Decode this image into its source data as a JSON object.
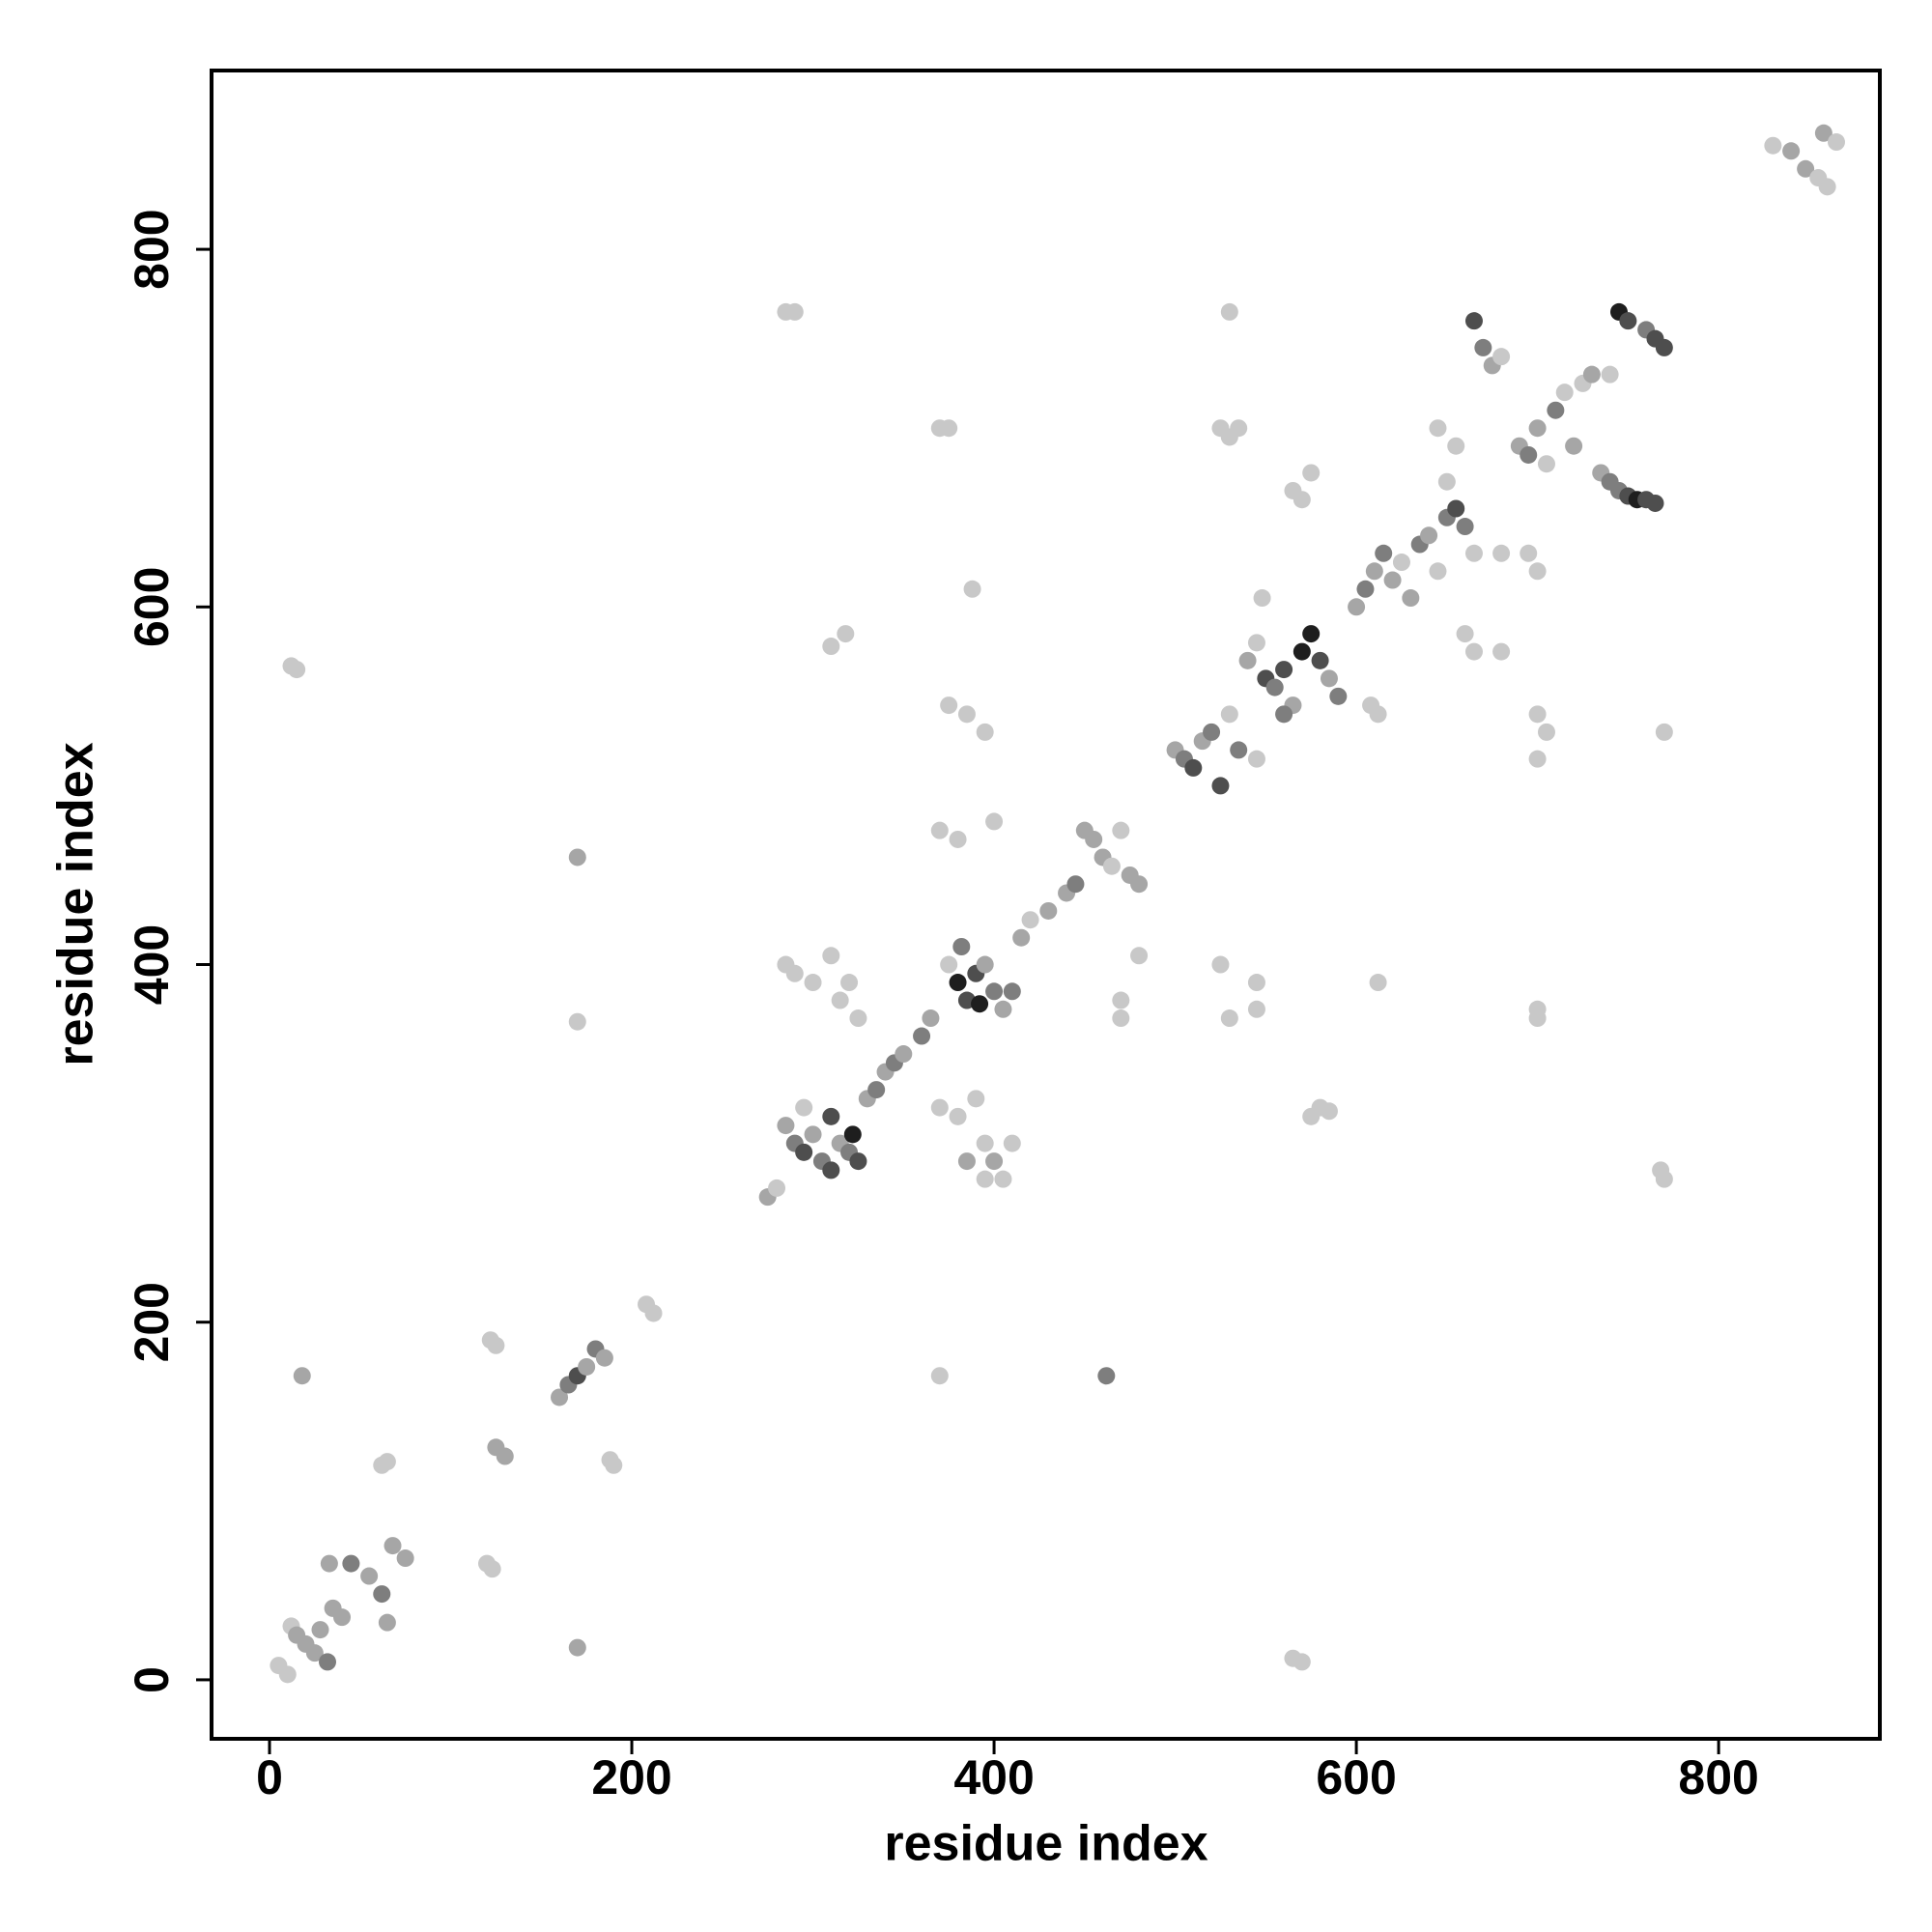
{
  "chart_data": {
    "type": "scatter",
    "x_label": "residue index",
    "y_label": "residue index",
    "xlim": [
      -32,
      889
    ],
    "ylim": [
      -33,
      900
    ],
    "xticks": [
      0,
      200,
      400,
      600,
      800
    ],
    "yticks": [
      0,
      200,
      400,
      600,
      800
    ],
    "grid": false,
    "x": [
      5,
      10,
      12,
      15,
      20,
      25,
      28,
      32,
      35,
      40,
      33,
      45,
      55,
      62,
      65,
      68,
      75,
      62,
      65,
      120,
      123,
      12,
      15,
      18,
      170,
      170,
      170,
      125,
      122,
      188,
      190,
      125,
      130,
      160,
      165,
      170,
      175,
      180,
      185,
      208,
      212,
      275,
      280,
      285,
      290,
      295,
      300,
      305,
      310,
      315,
      320,
      325,
      330,
      335,
      340,
      345,
      350,
      295,
      310,
      322,
      285,
      290,
      300,
      310,
      315,
      320,
      325,
      285,
      290,
      310,
      318,
      360,
      365,
      375,
      380,
      385,
      390,
      395,
      400,
      405,
      410,
      382,
      392,
      415,
      420,
      430,
      440,
      445,
      450,
      455,
      460,
      465,
      470,
      475,
      480,
      370,
      375,
      375,
      385,
      395,
      370,
      380,
      400,
      370,
      380,
      390,
      395,
      400,
      405,
      410,
      395,
      385,
      388,
      370,
      462,
      480,
      470,
      470,
      500,
      505,
      510,
      515,
      520,
      525,
      530,
      535,
      540,
      545,
      550,
      555,
      560,
      565,
      570,
      575,
      580,
      585,
      590,
      548,
      545,
      560,
      530,
      525,
      530,
      535,
      525,
      530,
      545,
      545,
      580,
      575,
      585,
      570,
      565,
      612,
      612,
      608,
      600,
      605,
      610,
      615,
      620,
      625,
      630,
      635,
      640,
      645,
      650,
      655,
      660,
      655,
      645,
      650,
      565,
      570,
      575,
      665,
      680,
      665,
      670,
      675,
      680,
      690,
      695,
      700,
      705,
      710,
      715,
      720,
      725,
      730,
      740,
      735,
      740,
      745,
      750,
      755,
      760,
      765,
      745,
      750,
      760,
      765,
      770,
      660,
      665,
      680,
      695,
      700,
      700,
      705,
      700,
      700,
      700,
      770,
      768,
      770,
      830,
      840,
      848,
      855,
      860,
      858,
      865
    ],
    "values": [
      8,
      3,
      30,
      25,
      20,
      15,
      28,
      10,
      40,
      35,
      65,
      65,
      58,
      48,
      32,
      75,
      68,
      120,
      122,
      65,
      62,
      567,
      565,
      170,
      18,
      460,
      368,
      187,
      190,
      123,
      120,
      130,
      125,
      158,
      165,
      170,
      175,
      185,
      180,
      210,
      205,
      270,
      275,
      310,
      300,
      295,
      305,
      290,
      285,
      300,
      295,
      290,
      325,
      330,
      340,
      345,
      350,
      320,
      315,
      305,
      400,
      395,
      390,
      405,
      380,
      390,
      370,
      765,
      765,
      578,
      585,
      360,
      370,
      400,
      390,
      380,
      395,
      400,
      385,
      375,
      385,
      410,
      378,
      415,
      425,
      430,
      440,
      445,
      475,
      470,
      460,
      455,
      475,
      450,
      445,
      700,
      700,
      545,
      540,
      530,
      475,
      470,
      480,
      320,
      315,
      325,
      300,
      290,
      280,
      300,
      280,
      290,
      610,
      170,
      170,
      405,
      380,
      370,
      520,
      515,
      510,
      525,
      530,
      500,
      540,
      520,
      570,
      580,
      560,
      555,
      565,
      545,
      575,
      585,
      570,
      560,
      550,
      605,
      515,
      540,
      765,
      700,
      695,
      700,
      400,
      370,
      390,
      375,
      320,
      315,
      318,
      10,
      12,
      390,
      540,
      545,
      600,
      610,
      620,
      630,
      615,
      625,
      605,
      635,
      640,
      620,
      650,
      655,
      645,
      690,
      700,
      670,
      665,
      660,
      675,
      630,
      630,
      760,
      745,
      735,
      740,
      690,
      685,
      700,
      680,
      710,
      720,
      690,
      725,
      730,
      730,
      675,
      670,
      665,
      662,
      660,
      660,
      658,
      765,
      760,
      755,
      750,
      745,
      585,
      575,
      575,
      630,
      620,
      540,
      530,
      515,
      375,
      370,
      530,
      285,
      280,
      858,
      855,
      845,
      840,
      835,
      865,
      860
    ],
    "colors": [
      "#c8c8c8",
      "#c8c8c8",
      "#c8c8c8",
      "#a6a6a6",
      "#a6a6a6",
      "#a6a6a6",
      "#a6a6a6",
      "#7e7e7e",
      "#a6a6a6",
      "#a6a6a6",
      "#a6a6a6",
      "#7e7e7e",
      "#a6a6a6",
      "#7e7e7e",
      "#a6a6a6",
      "#a6a6a6",
      "#a6a6a6",
      "#c8c8c8",
      "#c8c8c8",
      "#c8c8c8",
      "#c8c8c8",
      "#c8c8c8",
      "#c8c8c8",
      "#a6a6a6",
      "#a6a6a6",
      "#a6a6a6",
      "#c8c8c8",
      "#c8c8c8",
      "#c8c8c8",
      "#c8c8c8",
      "#c8c8c8",
      "#a6a6a6",
      "#a6a6a6",
      "#a6a6a6",
      "#7e7e7e",
      "#4e4e4e",
      "#a6a6a6",
      "#7e7e7e",
      "#a6a6a6",
      "#c8c8c8",
      "#c8c8c8",
      "#a6a6a6",
      "#c8c8c8",
      "#a6a6a6",
      "#7e7e7e",
      "#4e4e4e",
      "#a6a6a6",
      "#7e7e7e",
      "#4e4e4e",
      "#a6a6a6",
      "#7e7e7e",
      "#4e4e4e",
      "#a6a6a6",
      "#7e7e7e",
      "#a6a6a6",
      "#7e7e7e",
      "#a6a6a6",
      "#c8c8c8",
      "#4e4e4e",
      "#1e1e1e",
      "#c8c8c8",
      "#c8c8c8",
      "#c8c8c8",
      "#c8c8c8",
      "#c8c8c8",
      "#c8c8c8",
      "#c8c8c8",
      "#c8c8c8",
      "#c8c8c8",
      "#c8c8c8",
      "#c8c8c8",
      "#7e7e7e",
      "#a6a6a6",
      "#c8c8c8",
      "#1e1e1e",
      "#4e4e4e",
      "#4e4e4e",
      "#a6a6a6",
      "#7e7e7e",
      "#a6a6a6",
      "#7e7e7e",
      "#7e7e7e",
      "#1e1e1e",
      "#a6a6a6",
      "#c8c8c8",
      "#a6a6a6",
      "#a6a6a6",
      "#7e7e7e",
      "#a6a6a6",
      "#a6a6a6",
      "#a6a6a6",
      "#c8c8c8",
      "#c8c8c8",
      "#a6a6a6",
      "#a6a6a6",
      "#c8c8c8",
      "#c8c8c8",
      "#c8c8c8",
      "#c8c8c8",
      "#c8c8c8",
      "#c8c8c8",
      "#c8c8c8",
      "#c8c8c8",
      "#c8c8c8",
      "#c8c8c8",
      "#c8c8c8",
      "#c8c8c8",
      "#a6a6a6",
      "#c8c8c8",
      "#c8c8c8",
      "#c8c8c8",
      "#a6a6a6",
      "#c8c8c8",
      "#c8c8c8",
      "#7e7e7e",
      "#c8c8c8",
      "#c8c8c8",
      "#c8c8c8",
      "#a6a6a6",
      "#7e7e7e",
      "#4e4e4e",
      "#a6a6a6",
      "#7e7e7e",
      "#4e4e4e",
      "#c8c8c8",
      "#7e7e7e",
      "#a6a6a6",
      "#c8c8c8",
      "#4e4e4e",
      "#7e7e7e",
      "#4e4e4e",
      "#a6a6a6",
      "#1e1e1e",
      "#1e1e1e",
      "#4e4e4e",
      "#a6a6a6",
      "#7e7e7e",
      "#c8c8c8",
      "#c8c8c8",
      "#7e7e7e",
      "#c8c8c8",
      "#c8c8c8",
      "#c8c8c8",
      "#c8c8c8",
      "#c8c8c8",
      "#c8c8c8",
      "#c8c8c8",
      "#c8c8c8",
      "#c8c8c8",
      "#c8c8c8",
      "#c8c8c8",
      "#c8c8c8",
      "#c8c8c8",
      "#c8c8c8",
      "#c8c8c8",
      "#c8c8c8",
      "#a6a6a6",
      "#7e7e7e",
      "#a6a6a6",
      "#7e7e7e",
      "#a6a6a6",
      "#c8c8c8",
      "#a6a6a6",
      "#7e7e7e",
      "#a6a6a6",
      "#c8c8c8",
      "#7e7e7e",
      "#4e4e4e",
      "#7e7e7e",
      "#c8c8c8",
      "#c8c8c8",
      "#c8c8c8",
      "#c8c8c8",
      "#c8c8c8",
      "#c8c8c8",
      "#c8c8c8",
      "#c8c8c8",
      "#4e4e4e",
      "#7e7e7e",
      "#a6a6a6",
      "#c8c8c8",
      "#a6a6a6",
      "#7e7e7e",
      "#a6a6a6",
      "#c8c8c8",
      "#7e7e7e",
      "#c8c8c8",
      "#a6a6a6",
      "#c8c8c8",
      "#a6a6a6",
      "#c8c8c8",
      "#a6a6a6",
      "#7e7e7e",
      "#7e7e7e",
      "#4e4e4e",
      "#1e1e1e",
      "#4e4e4e",
      "#4e4e4e",
      "#1e1e1e",
      "#4e4e4e",
      "#7e7e7e",
      "#4e4e4e",
      "#4e4e4e",
      "#c8c8c8",
      "#c8c8c8",
      "#c8c8c8",
      "#c8c8c8",
      "#c8c8c8",
      "#c8c8c8",
      "#c8c8c8",
      "#c8c8c8",
      "#c8c8c8",
      "#c8c8c8",
      "#c8c8c8",
      "#c8c8c8",
      "#c8c8c8",
      "#c8c8c8",
      "#a6a6a6",
      "#a6a6a6",
      "#c8c8c8",
      "#c8c8c8",
      "#a6a6a6",
      "#c8c8c8"
    ]
  }
}
